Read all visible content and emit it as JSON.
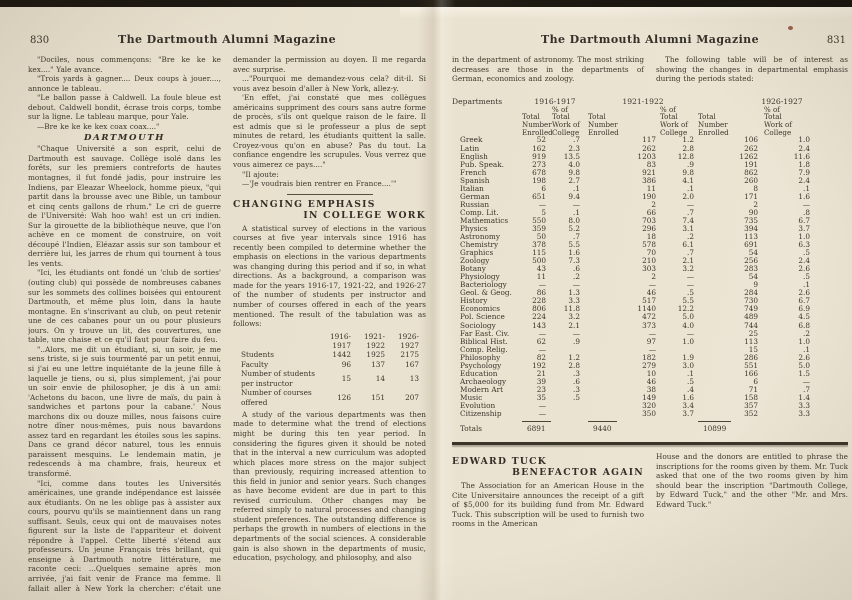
{
  "page830": {
    "folio": "830",
    "masthead": "The Dartmouth Alumni Magazine",
    "col1": {
      "p1": "\"Dociles, nous commençons: \"Bre ke ke ke kex....\" Yale avance.",
      "p2": "\"Trois yards à gagner.... Deux coups à jouer...., annonce le tableau.",
      "p3": "\"Le ballon passe à Caldwell. La foule bleue est debout. Caldwell bondit, écrase trois corps, tombe sur la ligne. Le tableau marque, pour Yale.",
      "p4": "—Bre ke ke ke kex coax coax....\"",
      "heading": "DARTMOUTH",
      "p5": "\"Chaque Université a son esprit, celui de Dartmouth est sauvage. Collège isolé dans les forêts, sur les premiers contreforts de hautes montagnes, il fut fondé jadis, pour instruire les Indiens, par Eleazar Wheelock, homme pieux, \"qui partit dans la brousse avec une Bible, un tambour et cinq cents gallons de rhum.\" Le cri de guerre de l'Université: Wah hoo wah! est un cri indien. Sur la girouette de la bibliothèque neuve, que l'on achève en ce moment de construire, on voit découpé l'Indien, Eléazar assis sur son tambour et derrière lui, les jarres de rhum qui tournent à tous les vents.",
      "p6": "\"Ici, les étudiants ont fondé un 'club de sorties' (outing club) qui possède de nombreuses cabanes sur les sommets des collines boisées qui entourent Dartmouth, et même plus loin, dans la haute montagne. En s'inscrivant au club, on peut retenir une de ces cabanes pour un ou pour plusieurs jours. On y trouve un lit, des couvertures, une table, une chaise et ce qu'il faut pour faire du feu.",
      "p7": "\"..Alors, me dit un étudiant, si, un soir, je me sens triste, si je suis tourmenté par un petit ennui, si j'ai eu une lettre inquiétante de la jeune fille à laquelle je tiens, ou si, plus simplement, j'ai pour un soir envie de philosopher, je dis à un ami: 'Achetons du bacon, une livre de maïs, du pain à sandwiches et partons pour la cabane.' Nous marchons dix ou douze milles, nous faisons cuire notre dîner nous-mêmes, puis nous bavardons assez tard en regardant les étoiles sous les sapins. Dans ce grand décor naturel, tous les ennuis paraissent mesquins. Le lendemain matin, je redescends à ma chambre, frais, heureux et transformé.",
      "p8": "\"Ici, comme dans toutes les Universités américaines, une grande indépendance est laissée aux étudiants. On ne les oblige pas à assister aux cours, pourvu qu'ils se maintiennent dans un rang suffisant. Seuls, ceux qui ont de mauvaises notes figurent sur la liste de l'appariteur et doivent répondre à l'appel. Cette liberté s'étend aux professeurs. Un jeune Français très brillant, qui enseigne à Dartmouth notre littérature, me raconte ceci: ...Quelques semaine après mon arrivée, j'ai fait venir de France ma femme. Il fallait aller à New York la chercher: c'était une absence de trois ou quatre jours; j'allai"
    },
    "col2": {
      "p1": "demander la permission au doyen. Il me regarda avec surprise.",
      "p2": "...\"Pourquoi me demandez-vous cela? dit-il. Si vous avez besoin d'aller à New York, allez-y.",
      "p3": "'En effet, j'ai constaté que mes collègues américains suppriment des cours sans autre forme de procès, s'ils ont quelque raison de le faire. Il est admis que si le professeur a plus de sept minutes de retard, les étudiants quittent la salle. Croyez-vous qu'on en abuse? Pas du tout. La confiance engendre les scrupules. Vous verrez que vous aimerez ce pays....\"",
      "p4": "\"Il ajoute:",
      "p5": "—'Je voudrais bien rentrer en France....'\"",
      "heading_line1": "CHANGING EMPHASIS",
      "heading_line2": "IN COLLEGE WORK",
      "p6": "A statistical survey of elections in the various courses at five year intervals since 1916 has recently been compiled to determine whether the emphasis on elections in the various departments was changing during this period and if so, in what directions. As a background, a comparison was made for the years 1916-17, 1921-22, and 1926-27 of the number of students per instructor and number of courses offered in each of the years mentioned. The result of the tabulation was as follows:",
      "p7": "A study of the various departments was then made to determine what the trend of elections might be during this ten year period. In considering the figures given it should be noted that in the interval a new curriculum was adopted which places more stress on the major subject than previously, requiring increased attention to this field in junior and senior years. Such changes as have become evident are due in part to this revised curriculum. Other changes may be referred simply to natural processes and changing student preferences. The outstanding difference is perhaps the growth in numbers of elections in the departments of the social sciences. A considerable gain is also shown in the departments of music, education, psychology, and philosophy, and also"
    },
    "stats": {
      "periods": [
        "1916-1917",
        "1921-1922",
        "1926-1927"
      ],
      "rows": [
        [
          "Students",
          "1442",
          "1925",
          "2175"
        ],
        [
          "Faculty",
          "96",
          "137",
          "167"
        ],
        [
          "Number of students\nper instructor",
          "15",
          "14",
          "13"
        ],
        [
          "Number of courses\noffered",
          "126",
          "151",
          "207"
        ]
      ]
    }
  },
  "page831": {
    "folio": "831",
    "masthead": "The Dartmouth Alumni Magazine",
    "intro_left": "in the department of astronomy. The most striking decreases are those in the departments of German, economics and zoology.",
    "intro_right": "The following table will be of interest as showing the changes in departmental emphasis during the periods stated:",
    "table": {
      "departments_label": "Departments",
      "periods": [
        "1916-1917",
        "1921-1922",
        "1926-1927"
      ],
      "sub_enrolled": "Total\nNumber\nEnrolled",
      "sub_pct": "% of\nTotal\nWork of\nCollege",
      "rows": [
        [
          "Greek",
          "52",
          ".7",
          "117",
          "1.2",
          "106",
          "1.0"
        ],
        [
          "Latin",
          "162",
          "2.3",
          "262",
          "2.8",
          "262",
          "2.4"
        ],
        [
          "English",
          "919",
          "13.5",
          "1203",
          "12.8",
          "1262",
          "11.6"
        ],
        [
          "Pub. Speak.",
          "273",
          "4.0",
          "83",
          ".9",
          "191",
          "1.8"
        ],
        [
          "French",
          "678",
          "9.8",
          "921",
          "9.8",
          "862",
          "7.9"
        ],
        [
          "Spanish",
          "198",
          "2.7",
          "386",
          "4.1",
          "260",
          "2.4"
        ],
        [
          "Italian",
          "6",
          ".1",
          "11",
          ".1",
          "8",
          ".1"
        ],
        [
          "German",
          "651",
          "9.4",
          "190",
          "2.0",
          "171",
          "1.6"
        ],
        [
          "Russian",
          "—",
          "—",
          "2",
          "—",
          "2",
          "—"
        ],
        [
          "Comp. Lit.",
          "5",
          ".1",
          "66",
          ".7",
          "90",
          ".8"
        ],
        [
          "Mathematics",
          "550",
          "8.0",
          "703",
          "7.4",
          "735",
          "6.7"
        ],
        [
          "Physics",
          "359",
          "5.2",
          "296",
          "3.1",
          "394",
          "3.7"
        ],
        [
          "Astronomy",
          "50",
          ".7",
          "18",
          ".2",
          "113",
          "1.0"
        ],
        [
          "Chemistry",
          "378",
          "5.5",
          "578",
          "6.1",
          "691",
          "6.3"
        ],
        [
          "Graphics",
          "115",
          "1.6",
          "70",
          ".7",
          "54",
          ".5"
        ],
        [
          "Zoology",
          "500",
          "7.3",
          "210",
          "2.1",
          "256",
          "2.4"
        ],
        [
          "Botany",
          "43",
          ".6",
          "303",
          "3.2",
          "283",
          "2.6"
        ],
        [
          "Physiology",
          "11",
          ".2",
          "2",
          "—",
          "54",
          ".5"
        ],
        [
          "Bacteriology",
          "—",
          "—",
          "—",
          "—",
          "9",
          ".1"
        ],
        [
          "Geol. & Geog.",
          "86",
          "1.3",
          "46",
          ".5",
          "284",
          "2.6"
        ],
        [
          "History",
          "228",
          "3.3",
          "517",
          "5.5",
          "730",
          "6.7"
        ],
        [
          "Economics",
          "806",
          "11.8",
          "1140",
          "12.2",
          "749",
          "6.9"
        ],
        [
          "Pol. Science",
          "224",
          "3.2",
          "472",
          "5.0",
          "489",
          "4.5"
        ],
        [
          "Sociology",
          "143",
          "2.1",
          "373",
          "4.0",
          "744",
          "6.8"
        ],
        [
          "Far East. Civ.",
          "—",
          "—",
          "—",
          "—",
          "25",
          ".2"
        ],
        [
          "Biblical Hist.",
          "62",
          ".9",
          "97",
          "1.0",
          "113",
          "1.0"
        ],
        [
          "Comp. Relig.",
          "—",
          "",
          "—",
          "",
          "15",
          ".1"
        ],
        [
          "Philosophy",
          "82",
          "1.2",
          "182",
          "1.9",
          "286",
          "2.6"
        ],
        [
          "Psychology",
          "192",
          "2.8",
          "279",
          "3.0",
          "551",
          "5.0"
        ],
        [
          "Education",
          "21",
          ".3",
          "10",
          ".1",
          "166",
          "1.5"
        ],
        [
          "Archaeology",
          "39",
          ".6",
          "46",
          ".5",
          "6",
          "—"
        ],
        [
          "Modern Art",
          "23",
          ".3",
          "38",
          ".4",
          "71",
          ".7"
        ],
        [
          "Music",
          "35",
          ".5",
          "149",
          "1.6",
          "158",
          "1.4"
        ],
        [
          "Evolution",
          "—",
          "",
          "320",
          "3.4",
          "357",
          "3.3"
        ],
        [
          "Citizenship",
          "—",
          "",
          "350",
          "3.7",
          "352",
          "3.3"
        ]
      ],
      "totals_label": "Totals",
      "totals": [
        "6891",
        "9440",
        "10899"
      ]
    },
    "tuck": {
      "heading_line1": "EDWARD TUCK",
      "heading_line2": "BENEFACTOR AGAIN",
      "col_left": "The Association for an American House in the Cite Universitaire announces the receipt of a gift of $5,000 for its building fund from Mr. Edward Tuck. This subscription will be used to furnish two rooms in the American",
      "col_right": "House and the donors are entitled to phrase the inscriptions for the rooms given by them. Mr. Tuck asked that one of the two rooms given by him should bear the inscription \"Dartmouth College, by Edward Tuck,\" and the other \"Mr. and Mrs. Edward Tuck.\""
    }
  }
}
